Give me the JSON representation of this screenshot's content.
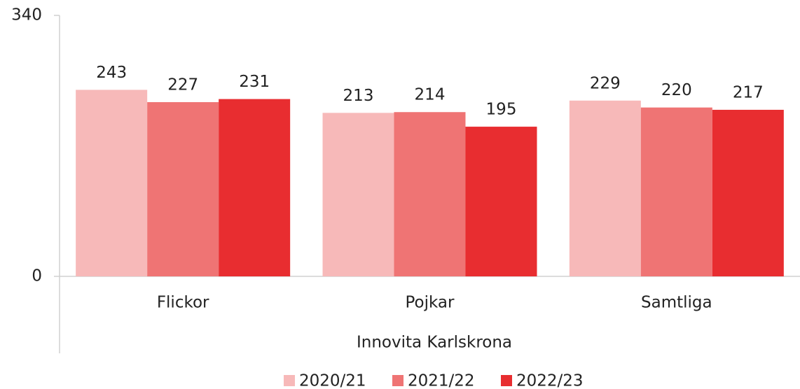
{
  "chart_data": {
    "type": "bar",
    "x_label": "Innovita Karlskrona",
    "categories": [
      "Flickor",
      "Pojkar",
      "Samtliga"
    ],
    "series": [
      {
        "name": "2020/21",
        "color": "#f7b9b9",
        "values": [
          243,
          213,
          229
        ]
      },
      {
        "name": "2021/22",
        "color": "#ef7474",
        "values": [
          227,
          214,
          220
        ]
      },
      {
        "name": "2022/23",
        "color": "#e82d30",
        "values": [
          231,
          195,
          217
        ]
      }
    ],
    "ylim": [
      0,
      340
    ],
    "yticks": [
      0,
      340
    ],
    "legend": "bottom"
  }
}
